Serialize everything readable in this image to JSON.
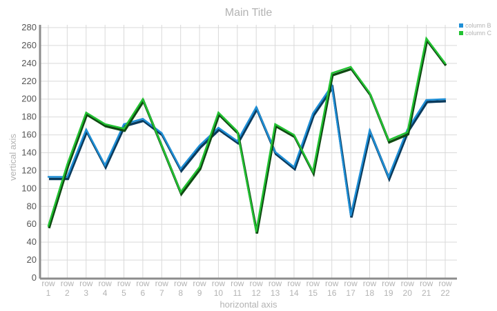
{
  "chart_data": {
    "type": "line",
    "title": "Main Title",
    "xlabel": "horizontal axis",
    "ylabel": "vertical axis",
    "ylim": [
      0,
      280
    ],
    "y_ticks": [
      0,
      20,
      40,
      60,
      80,
      100,
      120,
      140,
      160,
      180,
      200,
      220,
      240,
      260,
      280
    ],
    "grid": true,
    "legend_position": "top-right",
    "categories": [
      [
        "row",
        "1"
      ],
      [
        "row",
        "2"
      ],
      [
        "row",
        "3"
      ],
      [
        "row",
        "4"
      ],
      [
        "row",
        "5"
      ],
      [
        "row",
        "6"
      ],
      [
        "row",
        "7"
      ],
      [
        "row",
        "8"
      ],
      [
        "row",
        "9"
      ],
      [
        "row",
        "10"
      ],
      [
        "row",
        "11"
      ],
      [
        "row",
        "12"
      ],
      [
        "row",
        "13"
      ],
      [
        "row",
        "14"
      ],
      [
        "row",
        "15"
      ],
      [
        "row",
        "16"
      ],
      [
        "row",
        "17"
      ],
      [
        "row",
        "18"
      ],
      [
        "row",
        "19"
      ],
      [
        "row",
        "20"
      ],
      [
        "row",
        "21"
      ],
      [
        "row",
        "22"
      ]
    ],
    "series": [
      {
        "name": "column B",
        "color": "#1f8fd6",
        "values": [
          113,
          113,
          166,
          126,
          172,
          178,
          162,
          122,
          148,
          168,
          153,
          191,
          141,
          124,
          184,
          215,
          70,
          165,
          113,
          166,
          199,
          200
        ]
      },
      {
        "name": "column C",
        "color": "#22c232",
        "values": [
          58,
          127,
          185,
          172,
          167,
          200,
          148,
          96,
          124,
          185,
          164,
          52,
          172,
          160,
          119,
          229,
          236,
          207,
          154,
          163,
          268,
          240
        ]
      }
    ]
  }
}
